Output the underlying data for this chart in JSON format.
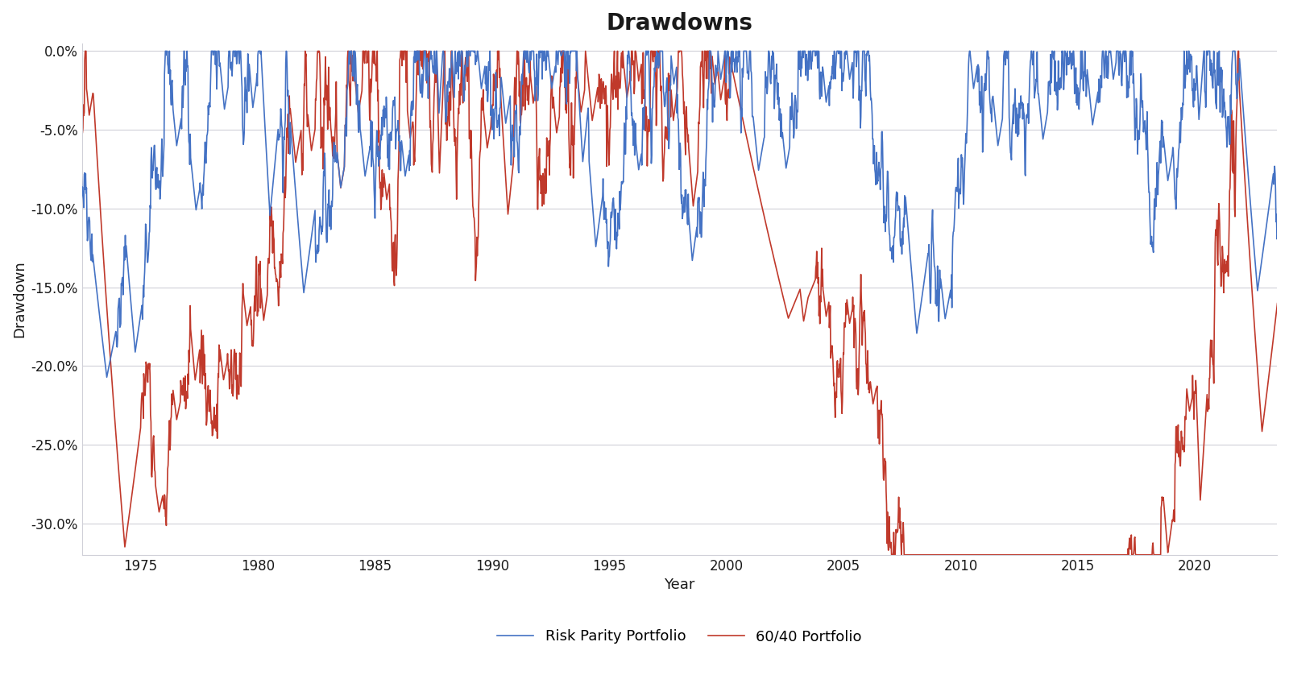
{
  "title": "Drawdowns",
  "xlabel": "Year",
  "ylabel": "Drawdown",
  "rp_color": "#4472C4",
  "p6040_color": "#C0392B",
  "background_color": "#FFFFFF",
  "ylim": [
    -0.32,
    0.005
  ],
  "yticks": [
    0.0,
    -0.05,
    -0.1,
    -0.15,
    -0.2,
    -0.25,
    -0.3
  ],
  "xticks": [
    1975,
    1980,
    1985,
    1990,
    1995,
    2000,
    2005,
    2010,
    2015,
    2020
  ],
  "title_fontsize": 20,
  "label_fontsize": 13,
  "tick_fontsize": 12,
  "legend_fontsize": 13,
  "line_width": 1.2,
  "grid_color": "#D0D0D8",
  "start_year": 1972,
  "end_year": 2023
}
